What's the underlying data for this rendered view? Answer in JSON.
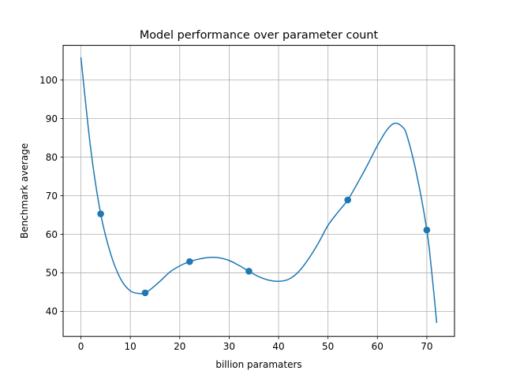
{
  "chart_data": {
    "type": "line",
    "title": "Model performance over parameter count",
    "xlabel": "billion paramaters",
    "ylabel": "Benchmark average",
    "xlim": [
      -3.6,
      75.6
    ],
    "ylim": [
      33.5,
      109
    ],
    "x_ticks": [
      0,
      10,
      20,
      30,
      40,
      50,
      60,
      70
    ],
    "y_ticks": [
      40,
      50,
      60,
      70,
      80,
      90,
      100
    ],
    "grid": true,
    "series": [
      {
        "kind": "markers",
        "color": "#1f77b4",
        "points": [
          {
            "x": 4,
            "y": 65.3
          },
          {
            "x": 13,
            "y": 44.8
          },
          {
            "x": 22,
            "y": 52.9
          },
          {
            "x": 34,
            "y": 50.4
          },
          {
            "x": 54,
            "y": 68.9
          },
          {
            "x": 70,
            "y": 61.1
          }
        ]
      },
      {
        "kind": "smooth-curve",
        "color": "#1f77b4",
        "x": [
          0,
          2,
          4,
          6,
          8,
          10,
          12,
          13,
          14,
          16,
          18,
          20,
          22,
          24,
          26,
          28,
          30,
          32,
          34,
          36,
          38,
          40,
          42,
          44,
          46,
          48,
          50,
          52,
          54,
          56,
          58,
          60,
          62,
          63.5,
          65,
          66,
          68,
          70,
          71,
          72
        ],
        "y": [
          105.9,
          82,
          65.3,
          55,
          48.5,
          45.3,
          44.6,
          44.8,
          45.6,
          47.8,
          50.2,
          51.8,
          52.9,
          53.6,
          54,
          53.9,
          53.2,
          51.9,
          50.4,
          49,
          48.1,
          47.8,
          48.3,
          50.2,
          53.5,
          57.6,
          62.3,
          65.7,
          68.9,
          73.3,
          78,
          83,
          87.2,
          88.8,
          87.9,
          85.5,
          75.2,
          61.1,
          50.1,
          37
        ]
      }
    ]
  }
}
